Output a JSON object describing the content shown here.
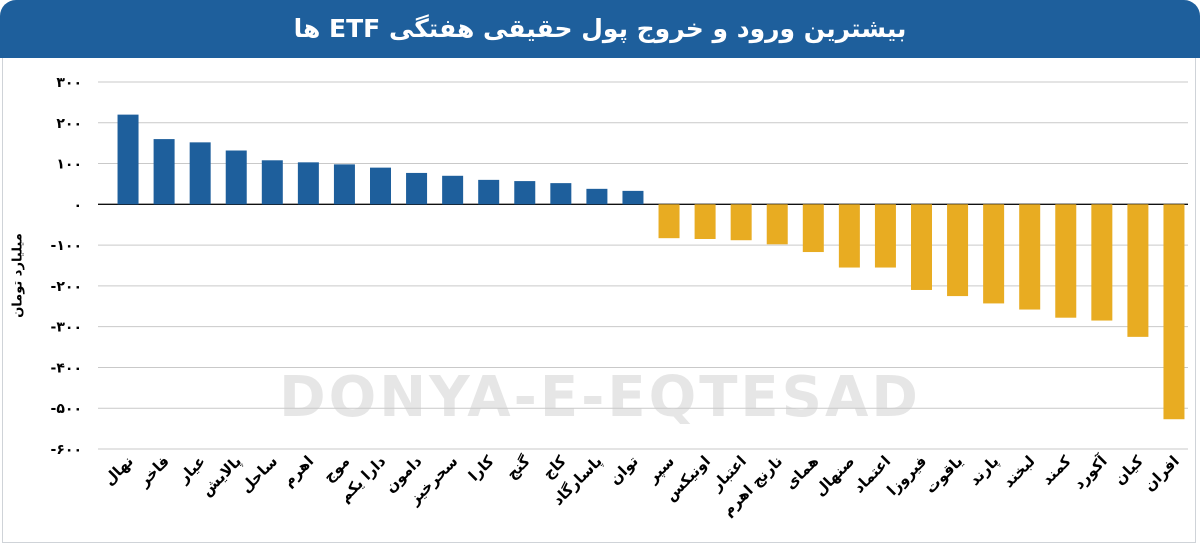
{
  "header": {
    "title": "بیشترین ورود و خروج پول حقیقی هفتگی ETF ها"
  },
  "watermark": "DONYA-E-EQTESAD",
  "colors": {
    "header_bg": "#1e5f9c",
    "inflow": "#1e5f9c",
    "outflow": "#e8ac22"
  },
  "chart_data": {
    "type": "bar",
    "title": "بیشترین ورود و خروج پول حقیقی هفتگی ETF ها",
    "ylabel": "میلیارد تومان",
    "xlabel": "",
    "ylim": [
      -600,
      300
    ],
    "yticks": [
      300,
      200,
      100,
      0,
      -100,
      -200,
      -300,
      -400,
      -500,
      -600
    ],
    "ytick_labels": [
      "۳۰۰",
      "۲۰۰",
      "۱۰۰",
      "۰",
      "-۱۰۰",
      "-۲۰۰",
      "-۳۰۰",
      "-۴۰۰",
      "-۵۰۰",
      "-۶۰۰"
    ],
    "categories": [
      "نهال",
      "فاخر",
      "عیار",
      "پالایش",
      "ساحل",
      "اهرم",
      "موج",
      "دارا یکم",
      "دامون",
      "سحرخیز",
      "کارا",
      "گنج",
      "کاج",
      "پاسارگاد",
      "توان",
      "سپر",
      "اونیکس",
      "اعتبار",
      "نارنج اهرم",
      "همای",
      "صنهال",
      "اعتماد",
      "فیروزا",
      "یاقوت",
      "پارند",
      "لبخند",
      "کمند",
      "آکورد",
      "کیان",
      "افران"
    ],
    "values": [
      220,
      160,
      152,
      132,
      108,
      103,
      98,
      90,
      77,
      70,
      60,
      57,
      52,
      38,
      33,
      -83,
      -85,
      -88,
      -98,
      -117,
      -155,
      -155,
      -210,
      -225,
      -243,
      -258,
      -278,
      -285,
      -325,
      -527
    ],
    "grid": true,
    "legend": "none"
  }
}
